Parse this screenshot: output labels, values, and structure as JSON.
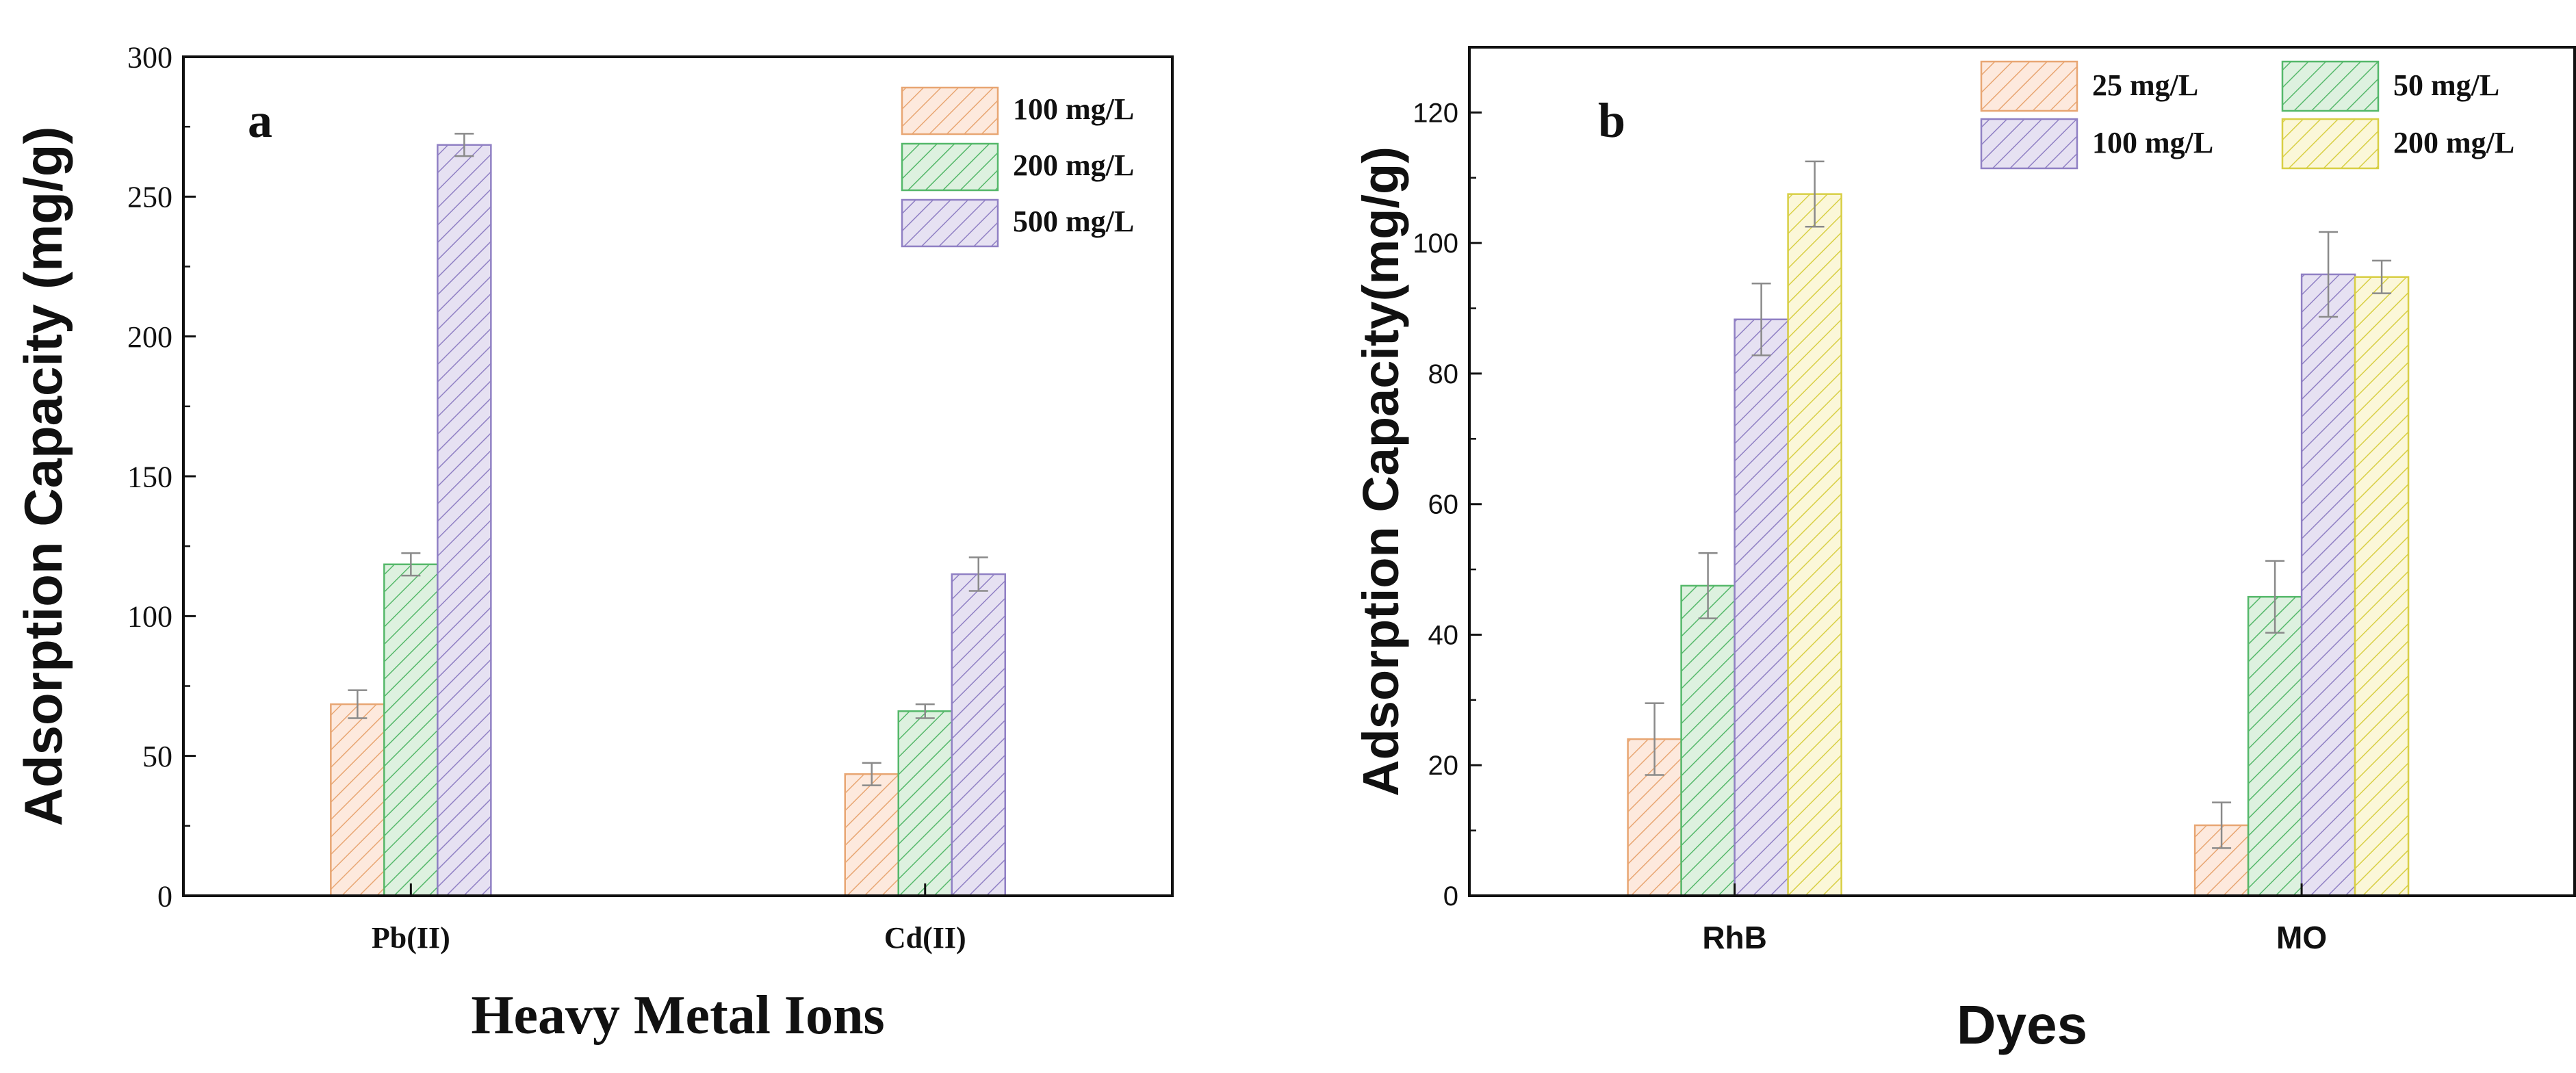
{
  "colors": {
    "pattern_25": "#e8a673",
    "pattern_50": "#55b86a",
    "pattern_100": "#9080c4",
    "pattern_200": "#d8cf45",
    "fill_25": "#fde9dd",
    "fill_50": "#ddf1df",
    "fill_100": "#e6e1f2",
    "fill_200": "#fbf7d8",
    "axis": "#111111",
    "errorbar": "#8a8a8a"
  },
  "chart_data": [
    {
      "type": "bar",
      "panel_label": "a",
      "xlabel": "Heavy Metal Ions",
      "ylabel": "Adsorption Capacity (mg/g)",
      "categories": [
        "Pb(II)",
        "Cd(II)"
      ],
      "ylim": [
        0,
        300
      ],
      "yticks": [
        0,
        50,
        100,
        150,
        200,
        250,
        300
      ],
      "legend_position": "top-right",
      "legend_columns": 1,
      "grid": false,
      "series": [
        {
          "name": "100 mg/L",
          "key": "25",
          "values": [
            68.5,
            43.5
          ],
          "errors": [
            5,
            4
          ]
        },
        {
          "name": "200 mg/L",
          "key": "50",
          "values": [
            118.5,
            66.0
          ],
          "errors": [
            4,
            2.5
          ]
        },
        {
          "name": "500 mg/L",
          "key": "100",
          "values": [
            268.5,
            115.0
          ],
          "errors": [
            4,
            6
          ]
        }
      ]
    },
    {
      "type": "bar",
      "panel_label": "b",
      "xlabel": "Dyes",
      "ylabel": "Adsorption Capacity(mg/g)",
      "categories": [
        "RhB",
        "MO"
      ],
      "ylim": [
        0,
        130
      ],
      "yticks": [
        0,
        20,
        40,
        60,
        80,
        100,
        120
      ],
      "legend_position": "top-right",
      "legend_columns": 2,
      "grid": false,
      "series": [
        {
          "name": "25 mg/L",
          "key": "25",
          "values": [
            24.0,
            10.8
          ],
          "errors": [
            5.5,
            3.5
          ]
        },
        {
          "name": "50 mg/L",
          "key": "50",
          "values": [
            47.5,
            45.8
          ],
          "errors": [
            5,
            5.5
          ]
        },
        {
          "name": "100 mg/L",
          "key": "100",
          "values": [
            88.3,
            95.2
          ],
          "errors": [
            5.5,
            6.5
          ]
        },
        {
          "name": "200 mg/L",
          "key": "200",
          "values": [
            107.5,
            94.8
          ],
          "errors": [
            5,
            2.5
          ]
        }
      ]
    }
  ]
}
